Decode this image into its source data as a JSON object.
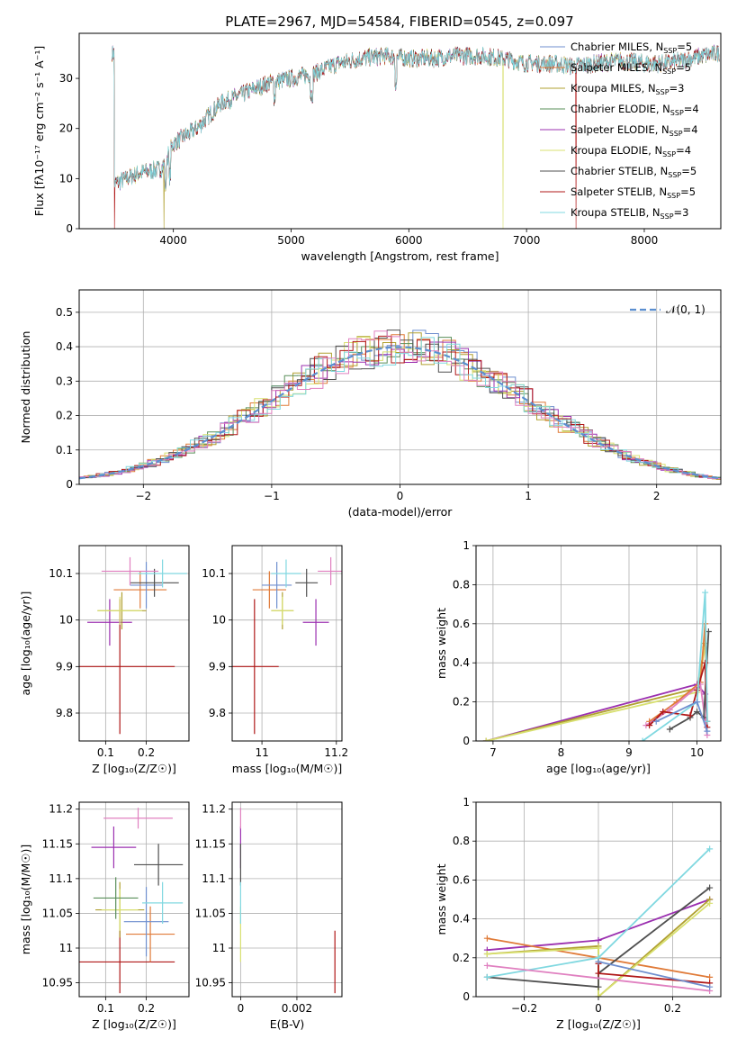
{
  "figure_title": "PLATE=2967, MJD=54584, FIBERID=0545, z=0.097",
  "colors": {
    "Chabrier MILES": "#6f8fcf",
    "Salpeter MILES": "#e07b39",
    "Kroupa MILES": "#b0a030",
    "Chabrier ELODIE": "#5a8f5a",
    "Salpeter ELODIE": "#9b30b0",
    "Kroupa ELODIE": "#d8e070",
    "Chabrier STELIB": "#505050",
    "Salpeter STELIB": "#b01818",
    "Kroupa STELIB": "#80d8e0",
    "pink": "#e080c0"
  },
  "chart_data": [
    {
      "id": "spectrum",
      "type": "line",
      "title": "PLATE=2967, MJD=54584, FIBERID=0545, z=0.097",
      "xlabel": "wavelength [Angstrom, rest frame]",
      "ylabel": "Flux [fλ10⁻¹⁷ erg cm⁻² s⁻¹ A⁻¹]",
      "xlim": [
        3200,
        8650
      ],
      "ylim": [
        0,
        39
      ],
      "xticks": [
        4000,
        5000,
        6000,
        7000,
        8000
      ],
      "yticks": [
        0,
        10,
        20,
        30
      ],
      "legend_position": "upper-right",
      "legend": [
        {
          "label": "Chabrier MILES, N",
          "sub": "SSP",
          "suffix": "=5"
        },
        {
          "label": "Salpeter MILES, N",
          "sub": "SSP",
          "suffix": "=5"
        },
        {
          "label": "Kroupa MILES, N",
          "sub": "SSP",
          "suffix": "=3"
        },
        {
          "label": "Chabrier ELODIE, N",
          "sub": "SSP",
          "suffix": "=4"
        },
        {
          "label": "Salpeter ELODIE, N",
          "sub": "SSP",
          "suffix": "=4"
        },
        {
          "label": "Kroupa ELODIE, N",
          "sub": "SSP",
          "suffix": "=4"
        },
        {
          "label": "Chabrier STELIB, N",
          "sub": "SSP",
          "suffix": "=5"
        },
        {
          "label": "Salpeter STELIB, N",
          "sub": "SSP",
          "suffix": "=5"
        },
        {
          "label": "Kroupa STELIB, N",
          "sub": "SSP",
          "suffix": "=3"
        }
      ],
      "continuum": {
        "x": [
          3500,
          3700,
          3900,
          4000,
          4200,
          4400,
          4600,
          4800,
          5000,
          5200,
          5400,
          5600,
          5800,
          6000,
          6200,
          6400,
          6600,
          6800,
          7000,
          7200,
          7400,
          7600,
          7800,
          8000,
          8200,
          8400,
          8600
        ],
        "y": [
          9,
          11,
          12,
          17,
          20,
          25,
          27,
          29,
          30,
          31,
          33,
          34,
          34.5,
          34,
          34,
          34.5,
          34.5,
          34,
          33,
          33,
          32.5,
          33,
          33.5,
          33,
          33,
          34,
          35
        ]
      },
      "dips": [
        {
          "series": "Salpeter STELIB",
          "x": 3500,
          "y": 0
        },
        {
          "series": "Kroupa MILES",
          "x": 3920,
          "y": 0
        },
        {
          "series": "Kroupa ELODIE",
          "x": 6800,
          "y": 0
        },
        {
          "series": "Salpeter STELIB",
          "x": 7420,
          "y": 0
        }
      ]
    },
    {
      "id": "residuals",
      "type": "histogram",
      "xlabel": "(data-model)/error",
      "ylabel": "Normed distribution",
      "xlim": [
        -2.5,
        2.5
      ],
      "ylim": [
        0,
        0.565
      ],
      "xticks": [
        -2,
        -1,
        0,
        1,
        2
      ],
      "yticks": [
        0.0,
        0.1,
        0.2,
        0.3,
        0.4,
        0.5
      ],
      "legend_position": "upper-right",
      "reference_curve": {
        "label": "𝒩(0, 1)",
        "mean": 0,
        "sigma": 1,
        "color": "#5b8fd0"
      }
    },
    {
      "id": "age-vs-Z",
      "type": "errorbar",
      "xlabel": "Z [log₁₀(Z/Z☉)]",
      "ylabel": "age  [log₁₀(age/yr)]",
      "xlim": [
        0.035,
        0.305
      ],
      "ylim": [
        9.74,
        10.16
      ],
      "xticks": [
        0.1,
        0.2
      ],
      "yticks": [
        9.8,
        9.9,
        10.0,
        10.1
      ],
      "points": [
        {
          "color": "#b01818",
          "x": 0.135,
          "xerr": 0.135,
          "y": 9.9,
          "yerr": 0.145
        },
        {
          "color": "#9b30b0",
          "x": 0.11,
          "xerr": 0.055,
          "y": 9.995,
          "yerr": 0.05
        },
        {
          "color": "#b0a030",
          "x": 0.14,
          "xerr": 0.06,
          "y": 10.02,
          "yerr": 0.04
        },
        {
          "color": "#d8e070",
          "x": 0.135,
          "xerr": 0.055,
          "y": 10.02,
          "yerr": 0.03
        },
        {
          "color": "#e07b39",
          "x": 0.185,
          "xerr": 0.065,
          "y": 10.065,
          "yerr": 0.04
        },
        {
          "color": "#6f8fcf",
          "x": 0.2,
          "xerr": 0.04,
          "y": 10.075,
          "yerr": 0.05
        },
        {
          "color": "#505050",
          "x": 0.22,
          "xerr": 0.06,
          "y": 10.08,
          "yerr": 0.03
        },
        {
          "color": "#80d8e0",
          "x": 0.24,
          "xerr": 0.06,
          "y": 10.1,
          "yerr": 0.03
        },
        {
          "color": "#e080c0",
          "x": 0.16,
          "xerr": 0.07,
          "y": 10.105,
          "yerr": 0.03
        }
      ]
    },
    {
      "id": "age-vs-mass",
      "type": "errorbar",
      "xlabel": "mass [log₁₀(M/M☉)]",
      "ylabel": "",
      "xlim": [
        10.92,
        11.215
      ],
      "ylim": [
        9.74,
        10.16
      ],
      "xticks": [
        11.0,
        11.2
      ],
      "yticks": [
        9.8,
        9.9,
        10.0,
        10.1
      ],
      "points": [
        {
          "color": "#b01818",
          "x": 10.98,
          "xerr": 0.065,
          "y": 9.9,
          "yerr": 0.145
        },
        {
          "color": "#9b30b0",
          "x": 11.145,
          "xerr": 0.035,
          "y": 9.995,
          "yerr": 0.05
        },
        {
          "color": "#b0a030",
          "x": 11.055,
          "xerr": 0.03,
          "y": 10.02,
          "yerr": 0.04
        },
        {
          "color": "#d8e070",
          "x": 11.055,
          "xerr": 0.03,
          "y": 10.02,
          "yerr": 0.03
        },
        {
          "color": "#e07b39",
          "x": 11.02,
          "xerr": 0.045,
          "y": 10.065,
          "yerr": 0.04
        },
        {
          "color": "#6f8fcf",
          "x": 11.04,
          "xerr": 0.04,
          "y": 10.075,
          "yerr": 0.05
        },
        {
          "color": "#505050",
          "x": 11.12,
          "xerr": 0.03,
          "y": 10.08,
          "yerr": 0.03
        },
        {
          "color": "#80d8e0",
          "x": 11.065,
          "xerr": 0.04,
          "y": 10.1,
          "yerr": 0.03
        },
        {
          "color": "#e080c0",
          "x": 11.185,
          "xerr": 0.035,
          "y": 10.105,
          "yerr": 0.03
        }
      ]
    },
    {
      "id": "weight-vs-age",
      "type": "line",
      "xlabel": "age  [log₁₀(age/yr)]",
      "ylabel": "mass weight",
      "xlim": [
        6.75,
        10.35
      ],
      "ylim": [
        0,
        1.0
      ],
      "xticks": [
        7,
        8,
        9,
        10
      ],
      "yticks": [
        0.0,
        0.2,
        0.4,
        0.6,
        0.8,
        1.0
      ],
      "series": [
        {
          "color": "#9b30b0",
          "x": [
            6.9,
            10.0,
            10.12,
            10.15
          ],
          "y": [
            0.0,
            0.29,
            0.24,
            0.1
          ]
        },
        {
          "color": "#b0a030",
          "x": [
            6.9,
            10.0,
            10.12
          ],
          "y": [
            0.0,
            0.27,
            0.5
          ]
        },
        {
          "color": "#d8e070",
          "x": [
            6.9,
            10.0,
            10.12
          ],
          "y": [
            0.0,
            0.25,
            0.48
          ]
        },
        {
          "color": "#e07b39",
          "x": [
            9.3,
            9.7,
            10.05,
            10.12,
            10.15
          ],
          "y": [
            0.1,
            0.2,
            0.3,
            0.6,
            0.1
          ]
        },
        {
          "color": "#e080c0",
          "x": [
            9.25,
            9.6,
            10.05,
            10.15
          ],
          "y": [
            0.08,
            0.16,
            0.29,
            0.03
          ]
        },
        {
          "color": "#505050",
          "x": [
            9.6,
            9.9,
            10.0,
            10.1,
            10.17
          ],
          "y": [
            0.06,
            0.12,
            0.15,
            0.12,
            0.56
          ]
        },
        {
          "color": "#b01818",
          "x": [
            9.3,
            9.5,
            9.9,
            10.0,
            10.12,
            10.15
          ],
          "y": [
            0.08,
            0.15,
            0.13,
            0.26,
            0.4,
            0.07
          ]
        },
        {
          "color": "#80d8e0",
          "x": [
            9.2,
            10.0,
            10.12,
            10.15
          ],
          "y": [
            0.0,
            0.2,
            0.76,
            0.1
          ]
        },
        {
          "color": "#6f8fcf",
          "x": [
            9.4,
            10.0,
            10.15
          ],
          "y": [
            0.1,
            0.2,
            0.05
          ]
        }
      ]
    },
    {
      "id": "mass-vs-Z",
      "type": "errorbar",
      "xlabel": "Z [log₁₀(Z/Z☉)]",
      "ylabel": "mass [log₁₀(M/M☉)]",
      "xlim": [
        0.035,
        0.305
      ],
      "ylim": [
        10.93,
        11.21
      ],
      "xticks": [
        0.1,
        0.2
      ],
      "yticks": [
        10.95,
        11.0,
        11.05,
        11.1,
        11.15,
        11.2
      ],
      "points": [
        {
          "color": "#b01818",
          "x": 0.135,
          "xerr": 0.135,
          "y": 10.98,
          "yerr": 0.045
        },
        {
          "color": "#9b30b0",
          "x": 0.12,
          "xerr": 0.055,
          "y": 11.145,
          "yerr": 0.03
        },
        {
          "color": "#b0a030",
          "x": 0.135,
          "xerr": 0.06,
          "y": 11.055,
          "yerr": 0.04
        },
        {
          "color": "#d8e070",
          "x": 0.135,
          "xerr": 0.045,
          "y": 11.055,
          "yerr": 0.03
        },
        {
          "color": "#5a8f5a",
          "x": 0.125,
          "xerr": 0.055,
          "y": 11.072,
          "yerr": 0.03
        },
        {
          "color": "#e07b39",
          "x": 0.21,
          "xerr": 0.06,
          "y": 11.02,
          "yerr": 0.04
        },
        {
          "color": "#6f8fcf",
          "x": 0.2,
          "xerr": 0.055,
          "y": 11.038,
          "yerr": 0.05
        },
        {
          "color": "#505050",
          "x": 0.23,
          "xerr": 0.06,
          "y": 11.12,
          "yerr": 0.03
        },
        {
          "color": "#80d8e0",
          "x": 0.24,
          "xerr": 0.05,
          "y": 11.065,
          "yerr": 0.03
        },
        {
          "color": "#e080c0",
          "x": 0.18,
          "xerr": 0.085,
          "y": 11.187,
          "yerr": 0.015
        }
      ]
    },
    {
      "id": "mass-vs-EBV",
      "type": "errorbar",
      "xlabel": "E(B-V)",
      "ylabel": "",
      "xlim": [
        -0.0003,
        0.0036
      ],
      "ylim": [
        10.93,
        11.21
      ],
      "xticks": [
        0.0,
        0.002
      ],
      "yticks": [
        10.95,
        11.0,
        11.05,
        11.1,
        11.15,
        11.2
      ],
      "points": [
        {
          "color": "#b01818",
          "x": 0.00335,
          "xerr": 0,
          "y": 10.98,
          "yerr": 0.045
        },
        {
          "color": "#9b30b0",
          "x": 0.0,
          "xerr": 0,
          "y": 11.145,
          "yerr": 0.03
        },
        {
          "color": "#505050",
          "x": 0.0,
          "xerr": 0,
          "y": 11.12,
          "yerr": 0.03
        },
        {
          "color": "#e080c0",
          "x": 0.0,
          "xerr": 0,
          "y": 11.187,
          "yerr": 0.015
        },
        {
          "color": "#d8e070",
          "x": 0.0,
          "xerr": 0,
          "y": 11.02,
          "yerr": 0.04
        },
        {
          "color": "#80d8e0",
          "x": 0.0,
          "xerr": 0,
          "y": 11.065,
          "yerr": 0.03
        }
      ]
    },
    {
      "id": "weight-vs-Z",
      "type": "line",
      "xlabel": "Z [log₁₀(Z/Z☉)]",
      "ylabel": "mass weight",
      "xlim": [
        -0.33,
        0.33
      ],
      "ylim": [
        0,
        1.0
      ],
      "xticks": [
        -0.2,
        0.0,
        0.2
      ],
      "yticks": [
        0.0,
        0.2,
        0.4,
        0.6,
        0.8,
        1.0
      ],
      "series": [
        {
          "color": "#9b30b0",
          "x": [
            -0.3,
            0.0,
            0.3
          ],
          "y": [
            0.24,
            0.29,
            0.5
          ]
        },
        {
          "color": "#e07b39",
          "x": [
            -0.3,
            0.3
          ],
          "y": [
            0.3,
            0.1
          ]
        },
        {
          "color": "#b0a030",
          "x": [
            -0.3,
            0.0,
            0.0,
            0.3
          ],
          "y": [
            0.22,
            0.26,
            0.0,
            0.5
          ]
        },
        {
          "color": "#d8e070",
          "x": [
            -0.3,
            0.0,
            0.0,
            0.3
          ],
          "y": [
            0.22,
            0.25,
            0.0,
            0.48
          ]
        },
        {
          "color": "#505050",
          "x": [
            -0.3,
            0.0,
            0.0,
            0.3
          ],
          "y": [
            0.1,
            0.05,
            0.12,
            0.56
          ]
        },
        {
          "color": "#b01818",
          "x": [
            0.0,
            0.0,
            0.3
          ],
          "y": [
            0.17,
            0.12,
            0.07
          ]
        },
        {
          "color": "#80d8e0",
          "x": [
            -0.3,
            0.0,
            0.3
          ],
          "y": [
            0.1,
            0.2,
            0.76
          ]
        },
        {
          "color": "#e080c0",
          "x": [
            -0.3,
            0.3
          ],
          "y": [
            0.16,
            0.03
          ]
        },
        {
          "color": "#6f8fcf",
          "x": [
            0.0,
            0.3
          ],
          "y": [
            0.18,
            0.05
          ]
        }
      ]
    }
  ]
}
